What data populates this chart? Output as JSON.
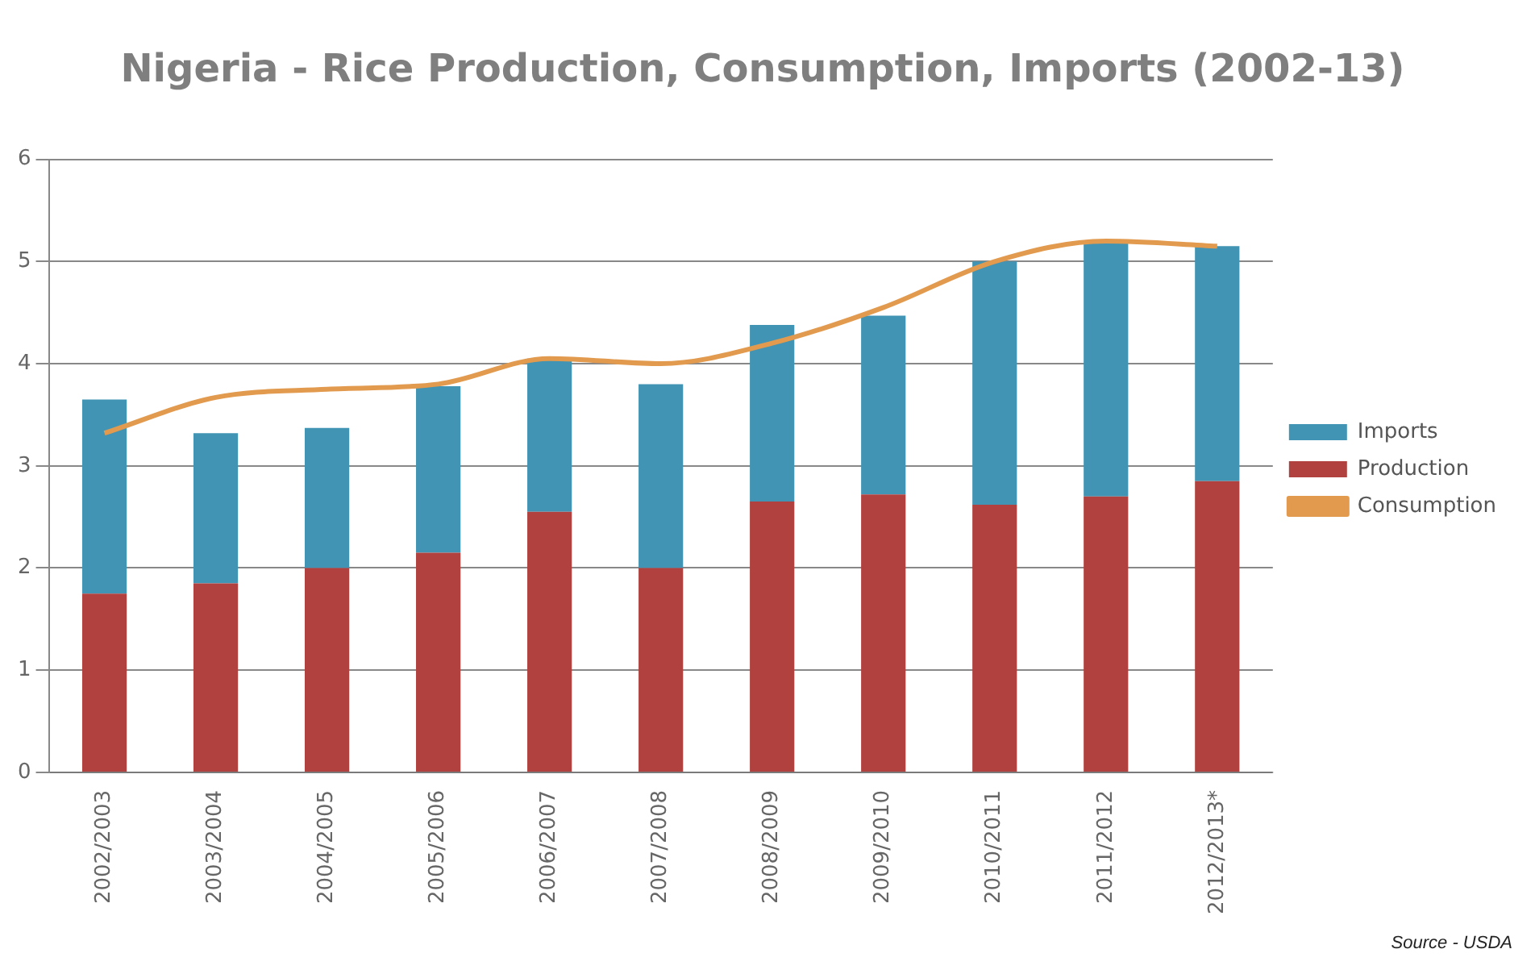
{
  "chart_data": {
    "type": "bar",
    "title": "Nigeria - Rice Production, Consumption, Imports (2002-13)",
    "categories": [
      "2002/2003",
      "2003/2004",
      "2004/2005",
      "2005/2006",
      "2006/2007",
      "2007/2008",
      "2008/2009",
      "2009/2010",
      "2010/2011",
      "2011/2012",
      "2012/2013*"
    ],
    "stacked": true,
    "series": [
      {
        "name": "Production",
        "color": "#b0413e",
        "values": [
          1.75,
          1.85,
          2.0,
          2.15,
          2.55,
          2.0,
          2.65,
          2.72,
          2.62,
          2.7,
          2.85
        ]
      },
      {
        "name": "Imports",
        "color": "#4194b3",
        "values": [
          1.9,
          1.47,
          1.37,
          1.63,
          1.5,
          1.8,
          1.73,
          1.75,
          2.38,
          2.48,
          2.3
        ]
      },
      {
        "name": "Consumption",
        "type": "line",
        "color": "#e29a4e",
        "values": [
          3.32,
          3.67,
          3.75,
          3.8,
          4.05,
          4.0,
          4.2,
          4.55,
          5.0,
          5.2,
          5.15
        ]
      }
    ],
    "ylim": [
      0,
      6
    ],
    "yticks": [
      0,
      1,
      2,
      3,
      4,
      5,
      6
    ],
    "grid": "y",
    "legend": "right",
    "marker": "none",
    "annotations": [
      "Source - USDA"
    ]
  }
}
